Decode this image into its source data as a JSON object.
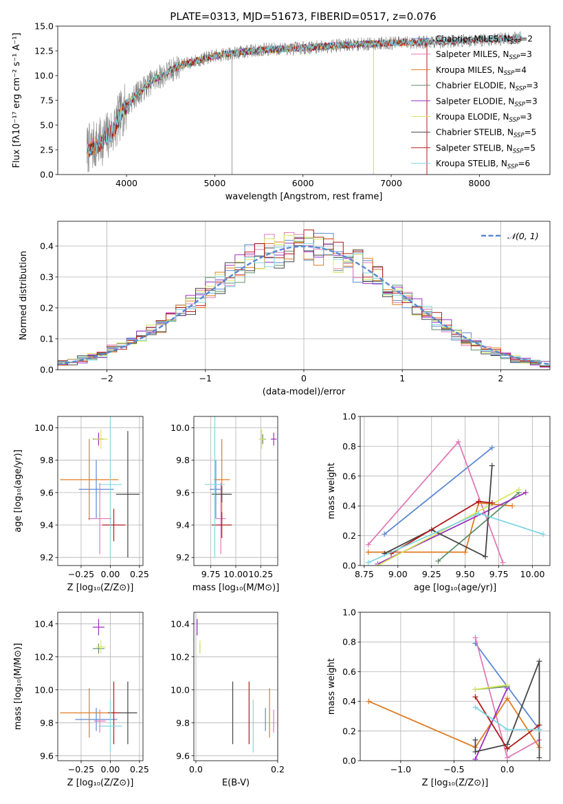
{
  "figure": {
    "title": "PLATE=0313, MJD=51673, FIBERID=0517, z=0.076"
  },
  "colors": {
    "Chabrier MILES": "#5b86d1",
    "Salpeter MILES": "#e07ab8",
    "Kroupa MILES": "#e07a1f",
    "Chabrier ELODIE": "#5d8d68",
    "Salpeter ELODIE": "#9a2fc0",
    "Kroupa ELODIE": "#d6e85a",
    "Chabrier STELIB": "#444444",
    "Salpeter STELIB": "#b11818",
    "Kroupa STELIB": "#7dd6e0",
    "data": "#808080"
  },
  "chart_data": [
    {
      "id": "spectrum",
      "type": "line",
      "title": "PLATE=0313, MJD=51673, FIBERID=0517, z=0.076",
      "xlabel": "wavelength [Angstrom, rest frame]",
      "ylabel": "Flux [fλ10⁻¹⁷ erg cm⁻² s⁻¹ A⁻¹]",
      "xlim": [
        3220,
        8800
      ],
      "ylim": [
        0,
        15
      ],
      "xticks": [
        4000,
        5000,
        6000,
        7000,
        8000
      ],
      "yticks": [
        0.0,
        2.5,
        5.0,
        7.5,
        10.0,
        12.5,
        15.0
      ],
      "legend_position": "right",
      "legend": [
        {
          "label": "Chabrier MILES, N_SSP=2"
        },
        {
          "label": "Salpeter MILES, N_SSP=3"
        },
        {
          "label": "Kroupa MILES, N_SSP=4"
        },
        {
          "label": "Chabrier ELODIE, N_SSP=3"
        },
        {
          "label": "Salpeter ELODIE, N_SSP=3"
        },
        {
          "label": "Kroupa ELODIE, N_SSP=3"
        },
        {
          "label": "Chabrier STELIB, N_SSP=5"
        },
        {
          "label": "Salpeter STELIB, N_SSP=5"
        },
        {
          "label": "Kroupa STELIB, N_SSP=6"
        }
      ],
      "continuum": {
        "x": [
          3550,
          3700,
          3850,
          3950,
          4100,
          4300,
          4600,
          5000,
          5500,
          6000,
          6500,
          7000,
          7500,
          8000,
          8500
        ],
        "y": [
          2.5,
          3.2,
          4.5,
          6.3,
          8.0,
          9.5,
          11.0,
          12.0,
          12.6,
          12.8,
          13.1,
          13.3,
          13.4,
          13.6,
          13.8
        ]
      },
      "data_range": [
        3550,
        8480
      ],
      "model_ranges": {
        "MILES": [
          3550,
          7400
        ],
        "ELODIE": [
          3900,
          6800
        ],
        "STELIB": [
          3550,
          8480
        ]
      },
      "absorption_dips": [
        {
          "x": 5195,
          "y": 0.0
        },
        {
          "x": 6800,
          "y": 0.0
        },
        {
          "x": 7405,
          "y": 0.0
        }
      ]
    },
    {
      "id": "residuals",
      "type": "histogram",
      "xlabel": "(data-model)/error",
      "ylabel": "Normed distribution",
      "xlim": [
        -2.5,
        2.5
      ],
      "ylim": [
        0,
        0.48
      ],
      "xticks": [
        -2,
        -1,
        0,
        1,
        2
      ],
      "yticks": [
        0.0,
        0.1,
        0.2,
        0.3,
        0.4
      ],
      "grid": true,
      "bin_width": 0.1,
      "legend": [
        {
          "label": "𝒩(0, 1)"
        }
      ],
      "gaussian": {
        "mean": 0,
        "sigma": 1
      }
    },
    {
      "id": "age-Z",
      "type": "errorbar",
      "xlabel": "Z [log₁₀(Z/Z⊙)]",
      "ylabel": "age  [log₁₀(age/yr)]",
      "xlim": [
        -0.45,
        0.28
      ],
      "ylim": [
        9.15,
        10.07
      ],
      "xticks": [
        -0.25,
        0.0,
        0.25
      ],
      "xtick_labels": [
        "−0.25",
        "0.00",
        "0.25"
      ],
      "yticks": [
        9.2,
        9.4,
        9.6,
        9.8,
        10.0
      ],
      "grid": true,
      "points": [
        {
          "model": "Chabrier MILES",
          "x": -0.12,
          "xerr": 0.15,
          "y": 9.62,
          "yerr": 0.18
        },
        {
          "model": "Salpeter MILES",
          "x": -0.09,
          "xerr": 0.1,
          "y": 9.44,
          "yerr": 0.22
        },
        {
          "model": "Kroupa MILES",
          "x": -0.18,
          "xerr": 0.25,
          "y": 9.68,
          "yerr": 0.25
        },
        {
          "model": "Chabrier ELODIE",
          "x": -0.1,
          "xerr": 0.05,
          "y": 9.93,
          "yerr": 0.03
        },
        {
          "model": "Salpeter ELODIE",
          "x": -0.1,
          "xerr": 0.04,
          "y": 9.93,
          "yerr": 0.04
        },
        {
          "model": "Kroupa ELODIE",
          "x": -0.08,
          "xerr": 0.06,
          "y": 9.93,
          "yerr": 0.06
        },
        {
          "model": "Chabrier STELIB",
          "x": 0.15,
          "xerr": 0.1,
          "y": 9.59,
          "yerr": 0.39
        },
        {
          "model": "Salpeter STELIB",
          "x": 0.03,
          "xerr": 0.1,
          "y": 9.4,
          "yerr": 0.1
        },
        {
          "model": "Kroupa STELIB",
          "x": 0.0,
          "xerr": 0.1,
          "y": 9.65,
          "yerr": 0.45
        }
      ]
    },
    {
      "id": "age-mass",
      "type": "errorbar",
      "xlabel": "mass [log₁₀(M/M⊙)]",
      "xlim": [
        9.58,
        10.42
      ],
      "ylim": [
        9.15,
        10.07
      ],
      "xticks": [
        9.75,
        10.0,
        10.25
      ],
      "xtick_labels": [
        "9.75",
        "10.00",
        "10.25"
      ],
      "yticks": [
        9.2,
        9.4,
        9.6,
        9.8,
        10.0
      ],
      "grid": true,
      "points": [
        {
          "model": "Chabrier MILES",
          "x": 9.8,
          "xerr": 0.06,
          "y": 9.62,
          "yerr": 0.18
        },
        {
          "model": "Salpeter MILES",
          "x": 9.85,
          "xerr": 0.05,
          "y": 9.44,
          "yerr": 0.22
        },
        {
          "model": "Kroupa MILES",
          "x": 9.86,
          "xerr": 0.08,
          "y": 9.68,
          "yerr": 0.25
        },
        {
          "model": "Chabrier ELODIE",
          "x": 10.27,
          "xerr": 0.03,
          "y": 9.93,
          "yerr": 0.03
        },
        {
          "model": "Salpeter ELODIE",
          "x": 10.38,
          "xerr": 0.03,
          "y": 9.93,
          "yerr": 0.04
        },
        {
          "model": "Kroupa ELODIE",
          "x": 10.26,
          "xerr": 0.03,
          "y": 9.93,
          "yerr": 0.06
        },
        {
          "model": "Chabrier STELIB",
          "x": 9.86,
          "xerr": 0.1,
          "y": 9.59,
          "yerr": 0.05
        },
        {
          "model": "Salpeter STELIB",
          "x": 9.86,
          "xerr": 0.1,
          "y": 9.4,
          "yerr": 0.08
        },
        {
          "model": "Kroupa STELIB",
          "x": 9.79,
          "xerr": 0.1,
          "y": 9.65,
          "yerr": 0.45
        }
      ]
    },
    {
      "id": "weight-age",
      "type": "line",
      "xlabel": "age  [log₁₀(age/yr)]",
      "ylabel": "mass weight",
      "xlim": [
        8.72,
        10.13
      ],
      "ylim": [
        0,
        1
      ],
      "xticks": [
        8.75,
        9.0,
        9.25,
        9.5,
        9.75,
        10.0
      ],
      "xtick_labels": [
        "8.75",
        "9.00",
        "9.25",
        "9.50",
        "9.75",
        "10.00"
      ],
      "yticks": [
        0.0,
        0.2,
        0.4,
        0.6,
        0.8,
        1.0
      ],
      "grid": true,
      "series": [
        {
          "model": "Chabrier MILES",
          "x": [
            8.9,
            9.7
          ],
          "y": [
            0.21,
            0.79
          ]
        },
        {
          "model": "Salpeter MILES",
          "x": [
            8.78,
            9.45,
            9.78
          ],
          "y": [
            0.14,
            0.83,
            0.02
          ]
        },
        {
          "model": "Kroupa MILES",
          "x": [
            8.78,
            9.5,
            9.6,
            9.85
          ],
          "y": [
            0.09,
            0.09,
            0.42,
            0.4
          ]
        },
        {
          "model": "Chabrier ELODIE",
          "x": [
            9.3,
            9.9
          ],
          "y": [
            0.03,
            0.49
          ]
        },
        {
          "model": "Salpeter ELODIE",
          "x": [
            8.85,
            9.95
          ],
          "y": [
            0.01,
            0.49
          ]
        },
        {
          "model": "Kroupa ELODIE",
          "x": [
            8.85,
            9.9
          ],
          "y": [
            0.0,
            0.51
          ]
        },
        {
          "model": "Chabrier STELIB",
          "x": [
            8.9,
            9.25,
            9.65,
            9.7
          ],
          "y": [
            0.08,
            0.24,
            0.06,
            0.67
          ]
        },
        {
          "model": "Salpeter STELIB",
          "x": [
            8.95,
            9.6,
            9.7
          ],
          "y": [
            0.08,
            0.43,
            0.42
          ]
        },
        {
          "model": "Kroupa STELIB",
          "x": [
            8.78,
            9.6,
            10.08
          ],
          "y": [
            0.02,
            0.35,
            0.21
          ]
        }
      ]
    },
    {
      "id": "mass-Z",
      "type": "errorbar",
      "xlabel": "Z [log₁₀(Z/Z⊙)]",
      "ylabel": "mass [log₁₀(M/M⊙)]",
      "xlim": [
        -0.45,
        0.28
      ],
      "ylim": [
        9.57,
        10.47
      ],
      "xticks": [
        -0.25,
        0.0,
        0.25
      ],
      "xtick_labels": [
        "−0.25",
        "0.00",
        "0.25"
      ],
      "yticks": [
        9.6,
        9.8,
        10.0,
        10.2,
        10.4
      ],
      "grid": true,
      "points": [
        {
          "model": "Chabrier MILES",
          "x": -0.12,
          "xerr": 0.18,
          "y": 9.82,
          "yerr": 0.07
        },
        {
          "model": "Salpeter MILES",
          "x": -0.09,
          "xerr": 0.05,
          "y": 9.81,
          "yerr": 0.07
        },
        {
          "model": "Kroupa MILES",
          "x": -0.18,
          "xerr": 0.25,
          "y": 9.86,
          "yerr": 0.15
        },
        {
          "model": "Chabrier ELODIE",
          "x": -0.1,
          "xerr": 0.05,
          "y": 10.25,
          "yerr": 0.03
        },
        {
          "model": "Salpeter ELODIE",
          "x": -0.1,
          "xerr": 0.05,
          "y": 10.38,
          "yerr": 0.05
        },
        {
          "model": "Kroupa ELODIE",
          "x": -0.08,
          "xerr": 0.04,
          "y": 10.26,
          "yerr": 0.04
        },
        {
          "model": "Chabrier STELIB",
          "x": 0.15,
          "xerr": 0.08,
          "y": 9.86,
          "yerr": 0.19
        },
        {
          "model": "Salpeter STELIB",
          "x": 0.03,
          "xerr": 0.05,
          "y": 9.86,
          "yerr": 0.19
        },
        {
          "model": "Kroupa STELIB",
          "x": 0.0,
          "xerr": 0.1,
          "y": 9.78,
          "yerr": 0.16
        }
      ]
    },
    {
      "id": "mass-EBV",
      "type": "errorbar",
      "xlabel": "E(B-V)",
      "xlim": [
        -0.005,
        0.2
      ],
      "ylim": [
        9.57,
        10.47
      ],
      "xticks": [
        0.0,
        0.2
      ],
      "xtick_labels": [
        "0.0",
        "0.2"
      ],
      "yticks": [
        9.6,
        9.8,
        10.0,
        10.2,
        10.4
      ],
      "grid": true,
      "points": [
        {
          "model": "Chabrier MILES",
          "x": 0.17,
          "y": 9.82,
          "yerr": 0.07
        },
        {
          "model": "Salpeter MILES",
          "x": 0.19,
          "y": 9.81,
          "yerr": 0.07
        },
        {
          "model": "Kroupa MILES",
          "x": 0.18,
          "y": 9.86,
          "yerr": 0.15
        },
        {
          "model": "Chabrier ELODIE",
          "x": 0.01,
          "y": 10.25,
          "yerr": 0.03
        },
        {
          "model": "Salpeter ELODIE",
          "x": 0.003,
          "y": 10.38,
          "yerr": 0.05
        },
        {
          "model": "Kroupa ELODIE",
          "x": 0.01,
          "y": 10.26,
          "yerr": 0.04
        },
        {
          "model": "Chabrier STELIB",
          "x": 0.09,
          "y": 9.86,
          "yerr": 0.19
        },
        {
          "model": "Salpeter STELIB",
          "x": 0.13,
          "y": 9.86,
          "yerr": 0.19
        },
        {
          "model": "Kroupa STELIB",
          "x": 0.14,
          "y": 9.78,
          "yerr": 0.16
        }
      ]
    },
    {
      "id": "weight-Z",
      "type": "line",
      "xlabel": "Z [log₁₀(Z/Z⊙)]",
      "ylabel": "mass weight",
      "xlim": [
        -1.38,
        0.4
      ],
      "ylim": [
        0,
        1
      ],
      "xticks": [
        -1.0,
        -0.5,
        0.0
      ],
      "xtick_labels": [
        "−1.0",
        "−0.5",
        "0.0"
      ],
      "yticks": [
        0.0,
        0.2,
        0.4,
        0.6,
        0.8,
        1.0
      ],
      "grid": true,
      "series": [
        {
          "model": "Chabrier MILES",
          "x": [
            -0.3,
            0.3
          ],
          "y": [
            0.79,
            0.21
          ]
        },
        {
          "model": "Salpeter MILES",
          "x": [
            -0.3,
            0.0,
            0.3
          ],
          "y": [
            0.83,
            0.02,
            0.14
          ]
        },
        {
          "model": "Kroupa MILES",
          "x": [
            -1.3,
            -0.3,
            0.0,
            0.3
          ],
          "y": [
            0.4,
            0.09,
            0.42,
            0.09
          ]
        },
        {
          "model": "Chabrier ELODIE",
          "x": [
            -0.3,
            0.0
          ],
          "y": [
            0.48,
            0.5
          ]
        },
        {
          "model": "Salpeter ELODIE",
          "x": [
            -0.3,
            0.0
          ],
          "y": [
            0.01,
            0.49
          ]
        },
        {
          "model": "Kroupa ELODIE",
          "x": [
            -0.3,
            0.0
          ],
          "y": [
            0.48,
            0.51
          ]
        },
        {
          "model": "Chabrier STELIB",
          "x": [
            -0.3,
            -0.3,
            0.0,
            0.3,
            0.3
          ],
          "y": [
            0.14,
            0.06,
            0.11,
            0.67,
            0.02
          ]
        },
        {
          "model": "Salpeter STELIB",
          "x": [
            -0.3,
            0.0,
            0.3
          ],
          "y": [
            0.43,
            0.08,
            0.24
          ]
        },
        {
          "model": "Kroupa STELIB",
          "x": [
            -0.3,
            0.0,
            0.3
          ],
          "y": [
            0.36,
            0.21,
            0.21
          ]
        }
      ]
    }
  ]
}
